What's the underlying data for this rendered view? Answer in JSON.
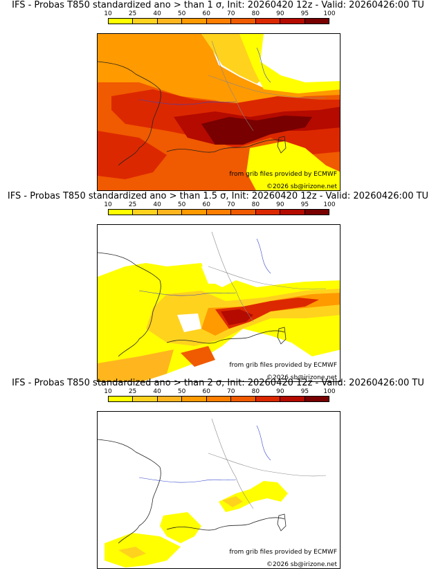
{
  "colors": {
    "scale": [
      "#ffff00",
      "#ffd21e",
      "#ffb61e",
      "#ff9a00",
      "#ff7e00",
      "#f05a00",
      "#dc2800",
      "#b40a00",
      "#780000"
    ]
  },
  "scale_labels": [
    "10",
    "25",
    "40",
    "50",
    "60",
    "70",
    "80",
    "90",
    "95",
    "100"
  ],
  "panels": [
    {
      "title": "IFS - Probas T850  standardized ano > than 1 σ, Init: 20260420 12z - Valid: 20260426:00 TU",
      "credit": "from grib files provided by ECMWF",
      "copyright": "©2026 sb@irizone.net"
    },
    {
      "title": "IFS - Probas T850  standardized ano > than 1.5 σ, Init: 20260420 12z - Valid: 20260426:00 TU",
      "credit": "from grib files provided by ECMWF",
      "copyright": "©2026 sb@irizone.net"
    },
    {
      "title": "IFS - Probas T850  standardized ano > than 2 σ, Init: 20260420 12z - Valid: 20260426:00 TU",
      "credit": "from grib files provided by ECMWF",
      "copyright": "©2026 sb@irizone.net"
    }
  ]
}
